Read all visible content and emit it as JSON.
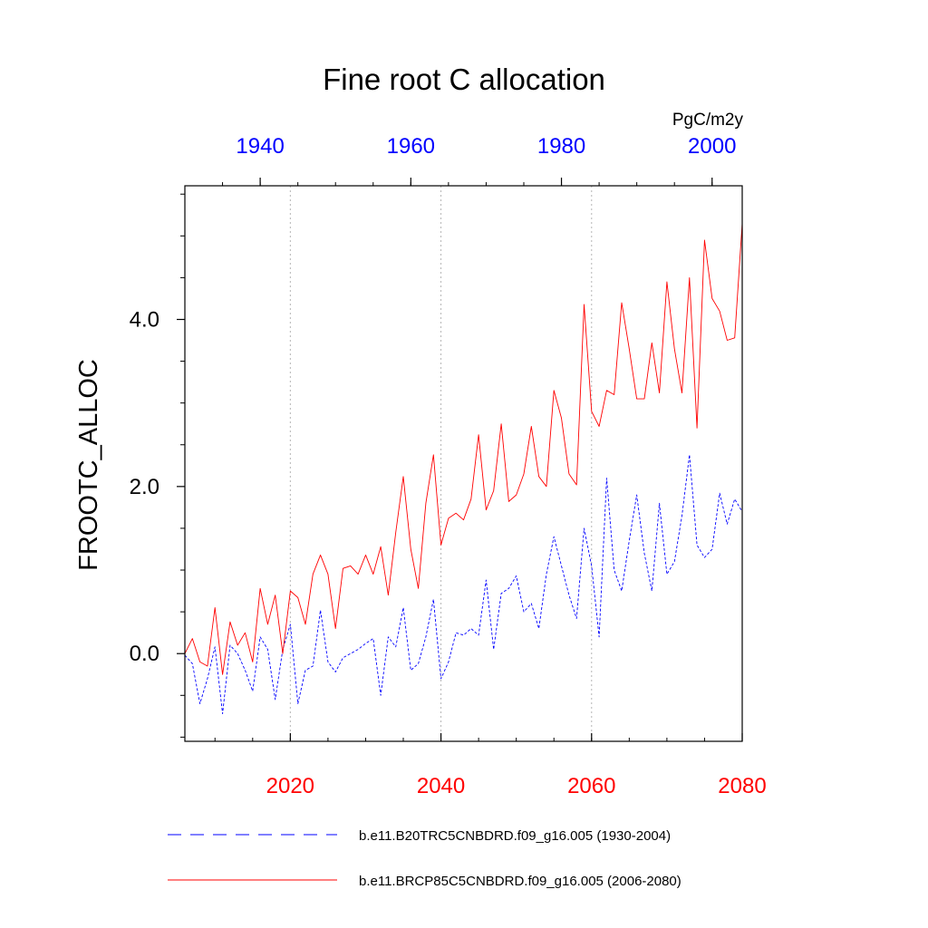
{
  "chart_data": {
    "type": "line",
    "title": "Fine root C allocation",
    "ylabel": "FROOTC_ALLOC",
    "units": "PgC/m2y",
    "ylim": [
      -1.05,
      5.6
    ],
    "y_ticks": [
      0,
      2,
      4
    ],
    "y_tick_labels": [
      "0.0",
      "2.0",
      "4.0"
    ],
    "bottom_axis": {
      "range": [
        2006,
        2080
      ],
      "ticks": [
        2020,
        2040,
        2060,
        2080
      ],
      "tick_labels": [
        "2020",
        "2040",
        "2060",
        "2080"
      ],
      "color": "#ff0000"
    },
    "top_axis": {
      "range": [
        1930,
        2004
      ],
      "ticks": [
        1940,
        1960,
        1980,
        2000
      ],
      "tick_labels": [
        "1940",
        "1960",
        "1980",
        "2000"
      ],
      "color": "#0000ff"
    },
    "grid_x": [
      2020,
      2040,
      2060
    ],
    "series": [
      {
        "name": "b.e11.B20TRC5CNBDRD.f09_g16.005 (1930-2004)",
        "axis": "top",
        "color": "#0000ff",
        "dash": "dashed",
        "x_start": 1930,
        "values": [
          -0.02,
          -0.12,
          -0.6,
          -0.3,
          0.08,
          -0.72,
          0.1,
          0.0,
          -0.2,
          -0.45,
          0.2,
          0.05,
          -0.55,
          0.05,
          0.35,
          -0.6,
          -0.2,
          -0.15,
          0.52,
          -0.1,
          -0.22,
          -0.05,
          0.0,
          0.05,
          0.12,
          0.18,
          -0.5,
          0.2,
          0.08,
          0.55,
          -0.2,
          -0.12,
          0.2,
          0.65,
          -0.3,
          -0.1,
          0.25,
          0.22,
          0.3,
          0.22,
          0.88,
          0.05,
          0.72,
          0.78,
          0.93,
          0.5,
          0.6,
          0.3,
          0.95,
          1.4,
          1.05,
          0.7,
          0.42,
          1.5,
          1.05,
          0.2,
          2.1,
          1.0,
          0.75,
          1.35,
          1.9,
          1.2,
          0.75,
          1.8,
          0.95,
          1.1,
          1.65,
          2.38,
          1.3,
          1.15,
          1.25,
          1.92,
          1.55,
          1.85,
          1.7
        ]
      },
      {
        "name": "b.e11.BRCP85C5CNBDRD.f09_g16.005 (2006-2080)",
        "axis": "bottom",
        "color": "#ff0000",
        "dash": "solid",
        "x_start": 2006,
        "values": [
          0.0,
          0.18,
          -0.1,
          -0.15,
          0.55,
          -0.25,
          0.38,
          0.1,
          0.25,
          -0.1,
          0.78,
          0.35,
          0.7,
          0.0,
          0.75,
          0.67,
          0.35,
          0.95,
          1.18,
          0.95,
          0.3,
          1.02,
          1.05,
          0.95,
          1.18,
          0.95,
          1.28,
          0.7,
          1.45,
          2.12,
          1.25,
          0.78,
          1.8,
          2.38,
          1.3,
          1.62,
          1.68,
          1.6,
          1.85,
          2.62,
          1.72,
          1.95,
          2.75,
          1.82,
          1.9,
          2.15,
          2.72,
          2.12,
          2.0,
          3.15,
          2.82,
          2.15,
          2.02,
          4.18,
          2.9,
          2.72,
          3.15,
          3.1,
          4.2,
          3.65,
          3.05,
          3.05,
          3.72,
          3.12,
          4.45,
          3.65,
          3.12,
          4.5,
          2.7,
          4.95,
          4.25,
          4.1,
          3.75,
          3.78,
          5.15
        ]
      }
    ],
    "legend": {
      "position": "bottom",
      "entries": [
        "b.e11.B20TRC5CNBDRD.f09_g16.005 (1930-2004)",
        "b.e11.BRCP85C5CNBDRD.f09_g16.005 (2006-2080)"
      ]
    },
    "grid": false
  }
}
